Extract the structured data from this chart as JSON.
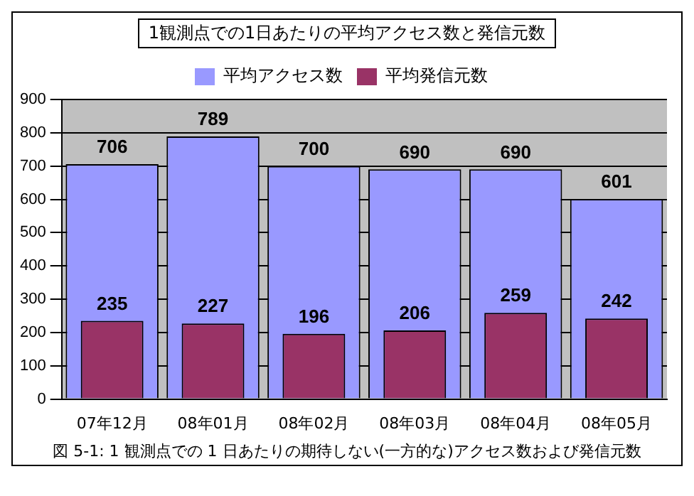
{
  "chart_data": {
    "type": "bar",
    "title": "1観測点での1日あたりの平均アクセス数と発信元数",
    "categories": [
      "07年12月",
      "08年01月",
      "08年02月",
      "08年03月",
      "08年04月",
      "08年05月"
    ],
    "series": [
      {
        "name": "平均アクセス数",
        "color": "#9999ff",
        "values": [
          706,
          789,
          700,
          690,
          690,
          601
        ]
      },
      {
        "name": "平均発信元数",
        "color": "#993366",
        "values": [
          235,
          227,
          196,
          206,
          259,
          242
        ]
      }
    ],
    "ylim": [
      0,
      900
    ],
    "yticks": [
      0,
      100,
      200,
      300,
      400,
      500,
      600,
      700,
      800,
      900
    ],
    "grid": "y",
    "legend": "top",
    "data_labels": true,
    "annotations": [
      "図 5-1: 1 観測点での 1 日あたりの期待しない(一方的な)アクセス数および発信元数"
    ]
  }
}
